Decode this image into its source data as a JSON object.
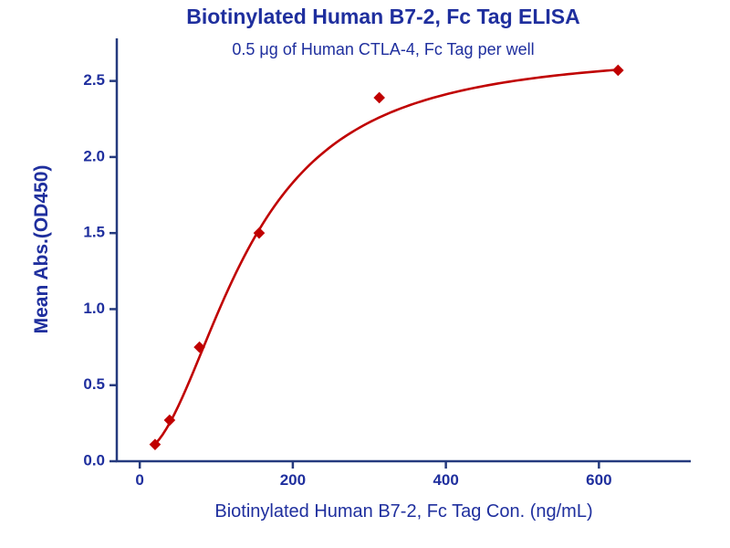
{
  "chart_data": {
    "type": "scatter",
    "title": "Biotinylated Human B7-2, Fc Tag ELISA",
    "subtitle": "0.5 μg of Human CTLA-4, Fc Tag per well",
    "xlabel": "Biotinylated Human B7-2, Fc Tag Con. (ng/mL)",
    "ylabel": "Mean Abs.(OD450)",
    "x": [
      20,
      39,
      78,
      156,
      313,
      625
    ],
    "y": [
      0.11,
      0.27,
      0.75,
      1.5,
      2.39,
      2.57
    ],
    "marker": "diamond",
    "fit": {
      "model": "4PL",
      "bottom": 0.06,
      "top": 2.7,
      "ec50": 140,
      "hill": 2.0,
      "x_start": 20,
      "x_end": 625
    },
    "xlim": [
      -30,
      720
    ],
    "ylim": [
      0,
      2.78
    ],
    "xticks": {
      "values": [
        0,
        200,
        400,
        600
      ],
      "labels": [
        "0",
        "200",
        "400",
        "600"
      ]
    },
    "yticks": {
      "values": [
        0,
        0.5,
        1.0,
        1.5,
        2.0,
        2.5
      ],
      "labels": [
        "0.0",
        "0.5",
        "1.0",
        "1.5",
        "2.0",
        "2.5"
      ]
    },
    "grid": false,
    "legend": null,
    "colors": {
      "text": "#1F2F9E",
      "axis": "#253A7E",
      "series": "#C00000"
    }
  }
}
